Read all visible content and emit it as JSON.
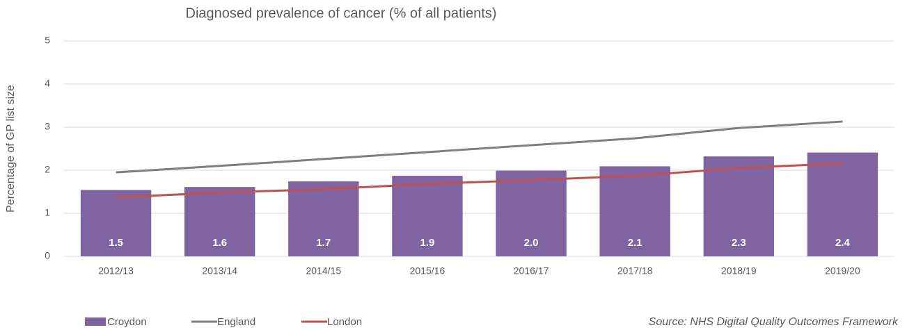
{
  "chart_data": {
    "type": "bar",
    "title": "Diagnosed prevalence of cancer (% of all patients)",
    "y_label": "Percentage of GP list size",
    "source": "Source: NHS Digital Quality Outcomes Framework",
    "categories": [
      "2012/13",
      "2013/14",
      "2014/15",
      "2015/16",
      "2016/17",
      "2017/18",
      "2018/19",
      "2019/20"
    ],
    "series": [
      {
        "name": "Croydon",
        "type": "bar",
        "color": "#8064a2",
        "values": [
          1.54,
          1.61,
          1.74,
          1.87,
          1.99,
          2.09,
          2.32,
          2.41
        ],
        "value_labels": [
          "1.5",
          "1.6",
          "1.7",
          "1.9",
          "2.0",
          "2.1",
          "2.3",
          "2.4"
        ]
      },
      {
        "name": "England",
        "type": "line",
        "color": "#7f7f7f",
        "values": [
          1.95,
          2.1,
          2.26,
          2.42,
          2.58,
          2.74,
          2.98,
          3.13
        ]
      },
      {
        "name": "London",
        "type": "line",
        "color": "#c0504d",
        "values": [
          1.37,
          1.48,
          1.56,
          1.68,
          1.77,
          1.87,
          2.05,
          2.16
        ]
      }
    ],
    "ylim": [
      0,
      5
    ],
    "yticks": [
      0,
      1,
      2,
      3,
      4,
      5
    ],
    "grid": true,
    "legend": "bottom-left"
  }
}
